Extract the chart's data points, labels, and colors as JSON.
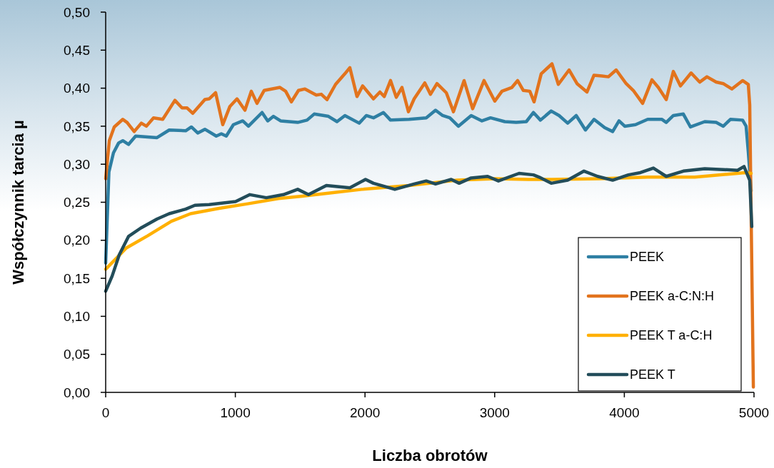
{
  "chart_data": {
    "type": "line",
    "xlabel": "Liczba obrotów",
    "ylabel": "Współczynnik tarcia µ",
    "xlim": [
      0,
      5000
    ],
    "ylim": [
      0,
      0.5
    ],
    "xticks": [
      0,
      1000,
      2000,
      3000,
      4000,
      5000
    ],
    "yticks": [
      {
        "value": 0,
        "label": "0,00"
      },
      {
        "value": 0.05,
        "label": "0,05"
      },
      {
        "value": 0.1,
        "label": "0,10"
      },
      {
        "value": 0.15,
        "label": "0,15"
      },
      {
        "value": 0.2,
        "label": "0,20"
      },
      {
        "value": 0.25,
        "label": "0,25"
      },
      {
        "value": 0.3,
        "label": "0,30"
      },
      {
        "value": 0.35,
        "label": "0,35"
      },
      {
        "value": 0.4,
        "label": "0,40"
      },
      {
        "value": 0.45,
        "label": "0,45"
      },
      {
        "value": 0.5,
        "label": "0,50"
      }
    ],
    "grid": false,
    "legend": "bottom right",
    "marker": "none",
    "line_style": "solid",
    "series": [
      {
        "name": "PEEK",
        "color": "#2e7fa3",
        "x": [
          0,
          25,
          60,
          100,
          132,
          176,
          231,
          396,
          490,
          617,
          661,
          710,
          765,
          853,
          892,
          930,
          985,
          1057,
          1101,
          1206,
          1250,
          1294,
          1349,
          1481,
          1553,
          1608,
          1718,
          1784,
          1845,
          1955,
          2010,
          2065,
          2142,
          2197,
          2340,
          2472,
          2544,
          2599,
          2654,
          2720,
          2819,
          2902,
          2968,
          3078,
          3166,
          3244,
          3299,
          3353,
          3436,
          3497,
          3563,
          3629,
          3700,
          3766,
          3849,
          3910,
          3959,
          4003,
          4086,
          4180,
          4290,
          4323,
          4378,
          4455,
          4510,
          4620,
          4708,
          4763,
          4818,
          4912,
          4939,
          4956,
          4978
        ],
        "values": [
          0.17,
          0.29,
          0.315,
          0.328,
          0.331,
          0.326,
          0.337,
          0.335,
          0.345,
          0.344,
          0.349,
          0.341,
          0.346,
          0.337,
          0.34,
          0.337,
          0.352,
          0.357,
          0.35,
          0.368,
          0.357,
          0.363,
          0.357,
          0.355,
          0.358,
          0.366,
          0.363,
          0.356,
          0.364,
          0.354,
          0.364,
          0.361,
          0.368,
          0.358,
          0.359,
          0.361,
          0.371,
          0.364,
          0.361,
          0.35,
          0.364,
          0.357,
          0.361,
          0.356,
          0.355,
          0.356,
          0.368,
          0.358,
          0.37,
          0.364,
          0.354,
          0.364,
          0.345,
          0.359,
          0.348,
          0.343,
          0.357,
          0.35,
          0.352,
          0.359,
          0.359,
          0.355,
          0.364,
          0.366,
          0.349,
          0.356,
          0.355,
          0.35,
          0.359,
          0.358,
          0.35,
          0.316,
          0.265
        ]
      },
      {
        "name": "PEEK a-C:N:H",
        "color": "#e2731d",
        "x": [
          0,
          28,
          66,
          132,
          165,
          220,
          275,
          314,
          369,
          440,
          534,
          589,
          628,
          672,
          765,
          798,
          848,
          903,
          958,
          1013,
          1074,
          1123,
          1167,
          1222,
          1344,
          1388,
          1432,
          1487,
          1537,
          1624,
          1663,
          1707,
          1773,
          1845,
          1883,
          1938,
          1982,
          2065,
          2115,
          2148,
          2197,
          2241,
          2285,
          2335,
          2379,
          2461,
          2505,
          2555,
          2627,
          2682,
          2764,
          2830,
          2918,
          3001,
          3056,
          3133,
          3177,
          3221,
          3271,
          3304,
          3359,
          3442,
          3491,
          3574,
          3635,
          3712,
          3766,
          3827,
          3877,
          3937,
          4014,
          4069,
          4141,
          4213,
          4262,
          4323,
          4378,
          4433,
          4515,
          4581,
          4637,
          4708,
          4763,
          4829,
          4912,
          4956,
          4967,
          4995
        ],
        "values": [
          0.281,
          0.331,
          0.349,
          0.359,
          0.355,
          0.343,
          0.354,
          0.35,
          0.361,
          0.359,
          0.384,
          0.374,
          0.374,
          0.367,
          0.385,
          0.386,
          0.394,
          0.352,
          0.376,
          0.386,
          0.371,
          0.396,
          0.38,
          0.397,
          0.401,
          0.396,
          0.382,
          0.397,
          0.399,
          0.391,
          0.392,
          0.385,
          0.405,
          0.419,
          0.427,
          0.389,
          0.403,
          0.386,
          0.395,
          0.389,
          0.41,
          0.388,
          0.401,
          0.369,
          0.386,
          0.407,
          0.392,
          0.406,
          0.394,
          0.369,
          0.41,
          0.373,
          0.41,
          0.383,
          0.396,
          0.401,
          0.41,
          0.397,
          0.396,
          0.382,
          0.419,
          0.432,
          0.405,
          0.424,
          0.406,
          0.395,
          0.417,
          0.416,
          0.415,
          0.424,
          0.406,
          0.397,
          0.38,
          0.411,
          0.401,
          0.385,
          0.422,
          0.403,
          0.42,
          0.408,
          0.415,
          0.408,
          0.406,
          0.399,
          0.41,
          0.405,
          0.378,
          0.007
        ]
      },
      {
        "name": "PEEK T a-C:H",
        "color": "#ffb000",
        "x": [
          0,
          160,
          325,
          507,
          655,
          876,
          1096,
          1333,
          1514,
          1718,
          1977,
          2340,
          2709,
          3001,
          3260,
          3442,
          3811,
          4180,
          4543,
          4873,
          4929,
          4978
        ],
        "values": [
          0.162,
          0.19,
          0.206,
          0.225,
          0.235,
          0.242,
          0.248,
          0.255,
          0.258,
          0.262,
          0.267,
          0.272,
          0.279,
          0.281,
          0.28,
          0.28,
          0.281,
          0.283,
          0.283,
          0.288,
          0.289,
          0.288
        ]
      },
      {
        "name": "PEEK T",
        "color": "#234d5a",
        "x": [
          0,
          50,
          105,
          176,
          270,
          396,
          490,
          617,
          688,
          798,
          1002,
          1112,
          1239,
          1371,
          1481,
          1564,
          1702,
          1883,
          2004,
          2065,
          2230,
          2379,
          2472,
          2544,
          2665,
          2726,
          2819,
          2946,
          3029,
          3188,
          3299,
          3343,
          3436,
          3563,
          3689,
          3794,
          3910,
          4031,
          4124,
          4224,
          4323,
          4455,
          4620,
          4763,
          4873,
          4923,
          4967,
          4983
        ],
        "values": [
          0.133,
          0.153,
          0.181,
          0.205,
          0.216,
          0.228,
          0.235,
          0.241,
          0.246,
          0.247,
          0.251,
          0.26,
          0.256,
          0.26,
          0.267,
          0.26,
          0.272,
          0.269,
          0.28,
          0.275,
          0.267,
          0.274,
          0.278,
          0.274,
          0.28,
          0.275,
          0.282,
          0.284,
          0.278,
          0.288,
          0.286,
          0.283,
          0.275,
          0.279,
          0.291,
          0.284,
          0.279,
          0.286,
          0.289,
          0.295,
          0.284,
          0.291,
          0.294,
          0.293,
          0.292,
          0.297,
          0.279,
          0.218
        ]
      }
    ]
  }
}
